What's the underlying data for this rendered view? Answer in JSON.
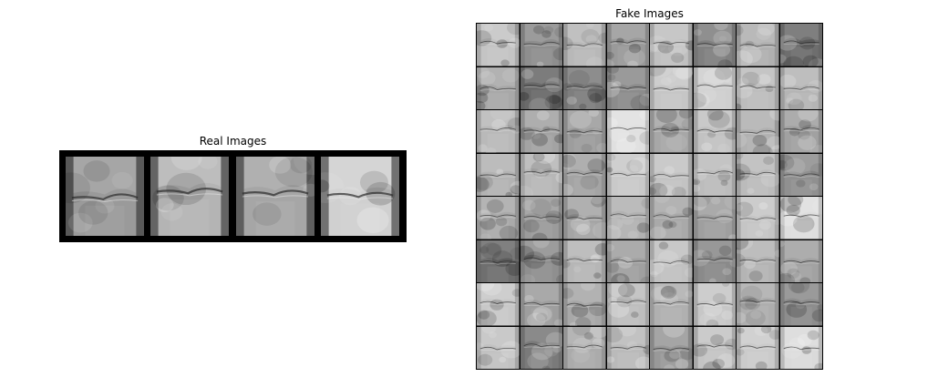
{
  "figure": {
    "real_panel": {
      "title": "Real Images",
      "image_count": 4,
      "description_tone": [
        "#9a9a9a",
        "#b4b4b4",
        "#a6a6a6",
        "#d0d0d0"
      ]
    },
    "fake_panel": {
      "title": "Fake Images",
      "rows": 8,
      "cols": 8,
      "tones": [
        [
          "#c4c4c4",
          "#8e8e8e",
          "#b8b8b8",
          "#9a9a9a",
          "#c0c0c0",
          "#808080",
          "#b0b0b0",
          "#6e6e6e"
        ],
        [
          "#a8a8a8",
          "#6a6a6a",
          "#7e7e7e",
          "#8c8c8c",
          "#c6c6c6",
          "#cfcfcf",
          "#bdbdbd",
          "#b5b5b5"
        ],
        [
          "#b9b9b9",
          "#a3a3a3",
          "#9d9d9d",
          "#e0e0e0",
          "#a7a7a7",
          "#c2c2c2",
          "#b1b1b1",
          "#a1a1a1"
        ],
        [
          "#b3b3b3",
          "#b7b7b7",
          "#a4a4a4",
          "#c9c9c9",
          "#c3c3c3",
          "#bcbcbc",
          "#bbbbbb",
          "#909090"
        ],
        [
          "#aaaaaa",
          "#9b9b9b",
          "#a5a5a5",
          "#b2b2b2",
          "#a9a9a9",
          "#9f9f9f",
          "#c5c5c5",
          "#dedede"
        ],
        [
          "#6f6f6f",
          "#8f8f8f",
          "#b6b6b6",
          "#a0a0a0",
          "#c1c1c1",
          "#8a8a8a",
          "#b4b4b4",
          "#a2a2a2"
        ],
        [
          "#c8c8c8",
          "#9e9e9e",
          "#a8a8a8",
          "#bebebe",
          "#b0b0b0",
          "#c7c7c7",
          "#aeaeae",
          "#8d8d8d"
        ],
        [
          "#c2c2c2",
          "#7a7a7a",
          "#ababab",
          "#bababa",
          "#999999",
          "#c4c4c4",
          "#cbcbcb",
          "#dadada"
        ]
      ]
    }
  }
}
